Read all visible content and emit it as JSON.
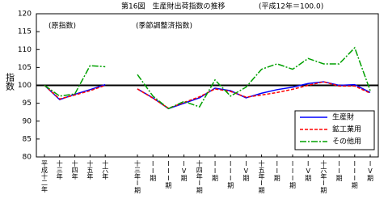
{
  "chart_data": {
    "type": "line",
    "title": "第16図　生産財出荷指数の推移",
    "subtitle": "(平成12年＝100.0)",
    "annotations": [
      "(原指数)",
      "(季節調整済指数)"
    ],
    "y_label": "指数",
    "categories": [
      "平成十二年",
      "十三年",
      "十四年",
      "十五年",
      "十六年",
      null,
      "十三年I期",
      "II期",
      "III期",
      "IV期",
      "十四年I期",
      "II期",
      "III期",
      "IV期",
      "十五年I期",
      "II期",
      "III期",
      "IV期",
      "十六年I期",
      "II期",
      "III期",
      "IV期"
    ],
    "series": [
      {
        "name": "生産財",
        "color": "#0000ff",
        "dash": "none",
        "values": [
          100,
          96,
          97.5,
          98.8,
          100.2,
          null,
          99,
          96.5,
          93.5,
          95,
          96.5,
          99.2,
          98.5,
          96.5,
          97.8,
          98.8,
          99.5,
          100.5,
          101,
          100,
          100.2,
          98
        ]
      },
      {
        "name": "鉱工業用",
        "color": "#ff0000",
        "dash": "4,2",
        "values": [
          100,
          96.2,
          97.3,
          98.5,
          100,
          null,
          99,
          96.4,
          93.6,
          95.2,
          96.8,
          99,
          98.3,
          96.7,
          97.3,
          98,
          98.9,
          100,
          101,
          99.8,
          99.8,
          97.8
        ]
      },
      {
        "name": "その他用",
        "color": "#00a000",
        "dash": "8,2,2,2",
        "values": [
          100,
          97,
          97.6,
          105.5,
          105.2,
          null,
          103,
          97,
          93.5,
          95.5,
          94,
          101.5,
          97,
          99.5,
          104.5,
          106,
          104.5,
          107.5,
          106,
          106,
          110.5,
          98.5
        ]
      }
    ],
    "ylim": [
      80,
      120
    ],
    "yticks": [
      80,
      85,
      90,
      95,
      100,
      105,
      110,
      115,
      120
    ],
    "hline": 100,
    "legend": "lower-right"
  }
}
